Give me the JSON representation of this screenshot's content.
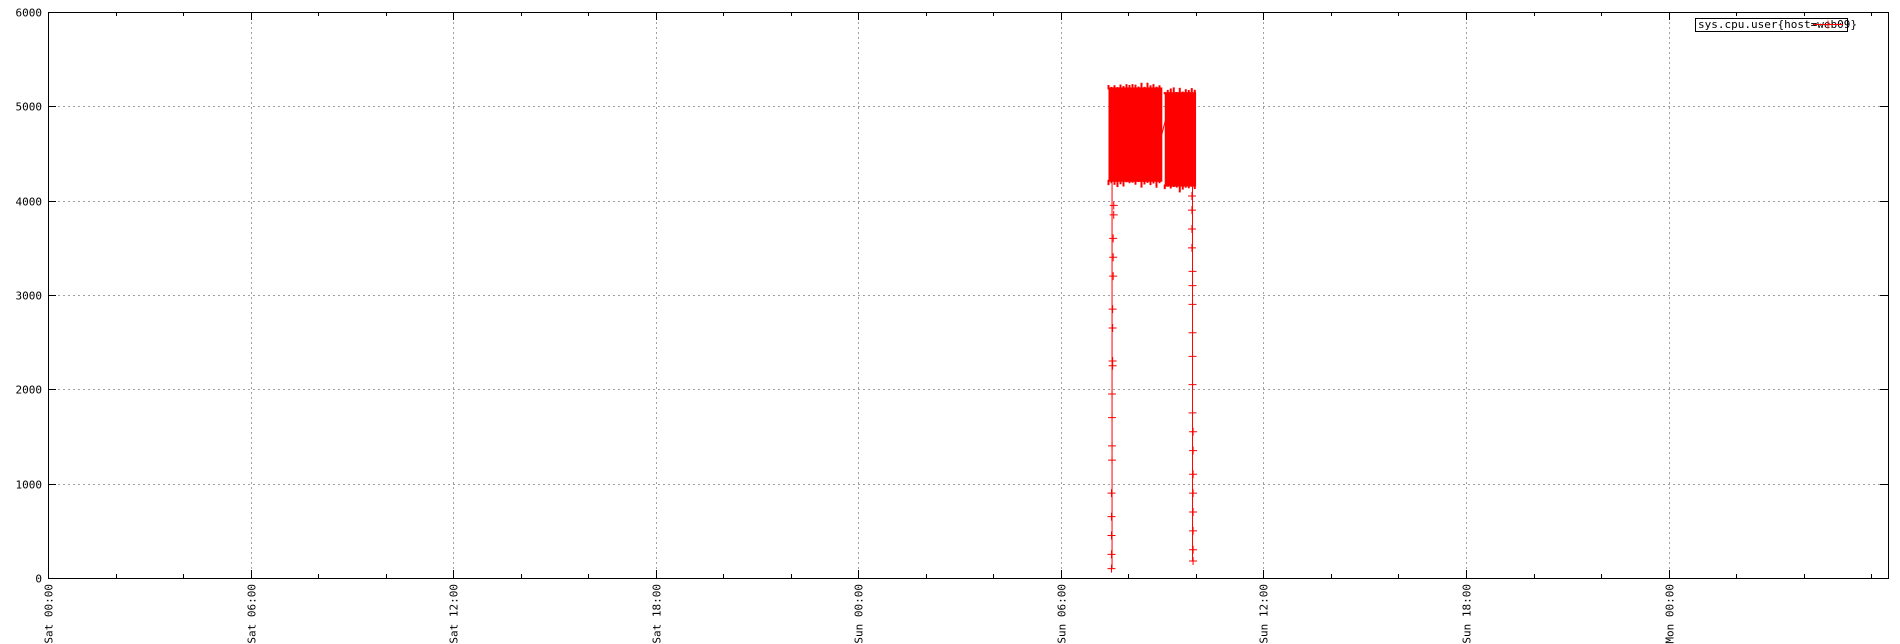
{
  "chart_data": {
    "type": "scatter",
    "title": "",
    "xlabel": "",
    "ylabel": "",
    "ylim": [
      0,
      6000
    ],
    "y_ticks": [
      0,
      1000,
      2000,
      3000,
      4000,
      5000,
      6000
    ],
    "x_ticks": [
      "Sat 00:00",
      "Sat 06:00",
      "Sat 12:00",
      "Sat 18:00",
      "Sun 00:00",
      "Sun 06:00",
      "Sun 12:00",
      "Sun 18:00",
      "Mon 00:00"
    ],
    "x_range_hours": [
      0,
      54.5
    ],
    "grid": true,
    "legend_position": "top-right",
    "series": [
      {
        "name": "sys.cpu.user{host=web09}",
        "color": "#ff0000",
        "marker": "plus",
        "bands": [
          {
            "x_start": "Sun 07:30",
            "x_end": "Sun 08:55",
            "y_min": 4200,
            "y_max": 5200
          },
          {
            "x_start": "Sun 09:10",
            "x_end": "Sun 09:55",
            "y_min": 4150,
            "y_max": 5150
          }
        ],
        "points": [
          {
            "x": "Sun 07:30",
            "y": 100
          },
          {
            "x": "Sun 07:30",
            "y": 250
          },
          {
            "x": "Sun 07:30",
            "y": 450
          },
          {
            "x": "Sun 07:30",
            "y": 650
          },
          {
            "x": "Sun 07:30",
            "y": 900
          },
          {
            "x": "Sun 07:31",
            "y": 1250
          },
          {
            "x": "Sun 07:31",
            "y": 1400
          },
          {
            "x": "Sun 07:31",
            "y": 1700
          },
          {
            "x": "Sun 07:31",
            "y": 1950
          },
          {
            "x": "Sun 07:32",
            "y": 2250
          },
          {
            "x": "Sun 07:32",
            "y": 2300
          },
          {
            "x": "Sun 07:32",
            "y": 2650
          },
          {
            "x": "Sun 07:32",
            "y": 2850
          },
          {
            "x": "Sun 07:33",
            "y": 3200
          },
          {
            "x": "Sun 07:33",
            "y": 3400
          },
          {
            "x": "Sun 07:33",
            "y": 3600
          },
          {
            "x": "Sun 07:34",
            "y": 3850
          },
          {
            "x": "Sun 07:34",
            "y": 3950
          },
          {
            "x": "Sun 09:55",
            "y": 180
          },
          {
            "x": "Sun 09:55",
            "y": 300
          },
          {
            "x": "Sun 09:55",
            "y": 500
          },
          {
            "x": "Sun 09:55",
            "y": 700
          },
          {
            "x": "Sun 09:55",
            "y": 900
          },
          {
            "x": "Sun 09:55",
            "y": 1100
          },
          {
            "x": "Sun 09:55",
            "y": 1350
          },
          {
            "x": "Sun 09:55",
            "y": 1550
          },
          {
            "x": "Sun 09:54",
            "y": 1750
          },
          {
            "x": "Sun 09:54",
            "y": 2050
          },
          {
            "x": "Sun 09:54",
            "y": 2350
          },
          {
            "x": "Sun 09:54",
            "y": 2600
          },
          {
            "x": "Sun 09:54",
            "y": 2900
          },
          {
            "x": "Sun 09:54",
            "y": 3100
          },
          {
            "x": "Sun 09:54",
            "y": 3250
          },
          {
            "x": "Sun 09:53",
            "y": 3500
          },
          {
            "x": "Sun 09:53",
            "y": 3700
          },
          {
            "x": "Sun 09:53",
            "y": 3900
          },
          {
            "x": "Sun 09:53",
            "y": 4050
          }
        ],
        "connector": {
          "from": {
            "x": "Sun 08:55",
            "y": 4600
          },
          "to": {
            "x": "Sun 09:10",
            "y": 4950
          }
        }
      }
    ]
  }
}
